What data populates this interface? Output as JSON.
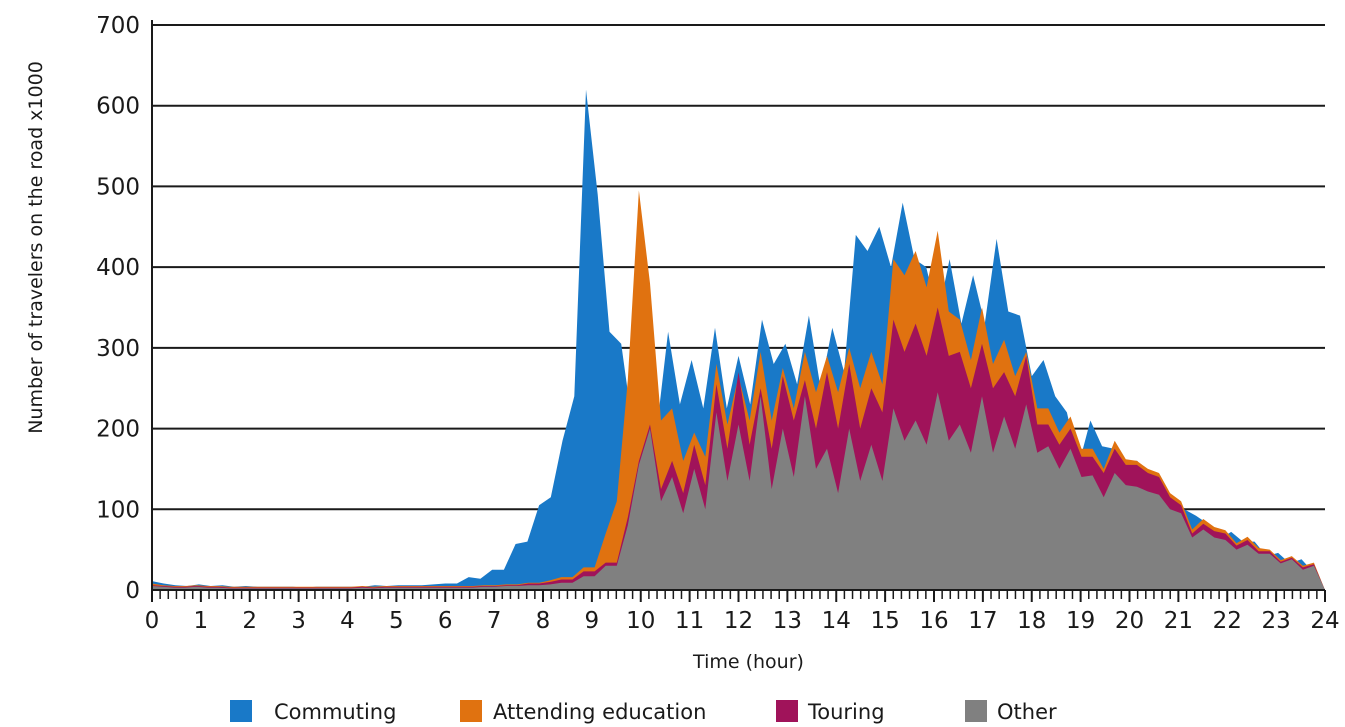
{
  "chart_data": {
    "type": "area",
    "stacked": true,
    "xlabel": "Time (hour)",
    "ylabel": "Number of travelers on the road x1000",
    "xlim": [
      0,
      24
    ],
    "ylim": [
      0,
      700
    ],
    "xticks": [
      0,
      1,
      2,
      3,
      4,
      5,
      6,
      7,
      8,
      9,
      10,
      11,
      12,
      13,
      14,
      15,
      16,
      17,
      18,
      19,
      20,
      21,
      22,
      23,
      24
    ],
    "yticks": [
      0,
      100,
      200,
      300,
      400,
      500,
      600,
      700
    ],
    "grid": "horizontal",
    "legend_position": "bottom",
    "x_step_hours": 0.1667,
    "series": [
      {
        "name": "Other",
        "color": "#808080",
        "totals": [
          5,
          4,
          3,
          3,
          4,
          3,
          3,
          2,
          2,
          2,
          2,
          2,
          2,
          2,
          2,
          2,
          2,
          2,
          2,
          3,
          2,
          3,
          3,
          3,
          3,
          3,
          3,
          3,
          3,
          3,
          4,
          4,
          5,
          5,
          6,
          6,
          7,
          9,
          9,
          17,
          17,
          30,
          30,
          80,
          155,
          200,
          110,
          140,
          95,
          150,
          100,
          220,
          135,
          205,
          135,
          240,
          125,
          200,
          140,
          240,
          150,
          175,
          120,
          200,
          135,
          180,
          135,
          225,
          185,
          210,
          180,
          245,
          185,
          205,
          170,
          240,
          170,
          215,
          175,
          230,
          170,
          178,
          150,
          175,
          140,
          142,
          115,
          145,
          130,
          128,
          122,
          118,
          100,
          95,
          65,
          75,
          65,
          62,
          50,
          56,
          45,
          45,
          33,
          38,
          25,
          30,
          0
        ]
      },
      {
        "name": "Touring",
        "color": "#a0135a",
        "totals": [
          6,
          5,
          4,
          4,
          5,
          4,
          4,
          3,
          3,
          3,
          3,
          3,
          3,
          3,
          3,
          3,
          3,
          3,
          3,
          4,
          3,
          4,
          4,
          4,
          4,
          4,
          4,
          4,
          4,
          4,
          5,
          5,
          6,
          6,
          8,
          8,
          10,
          13,
          13,
          23,
          23,
          34,
          34,
          90,
          160,
          205,
          125,
          160,
          120,
          180,
          130,
          255,
          175,
          270,
          180,
          250,
          175,
          265,
          210,
          260,
          200,
          270,
          200,
          280,
          200,
          250,
          220,
          335,
          295,
          330,
          290,
          350,
          290,
          295,
          250,
          305,
          250,
          270,
          240,
          290,
          205,
          205,
          180,
          200,
          165,
          165,
          145,
          175,
          155,
          155,
          145,
          140,
          115,
          105,
          70,
          82,
          73,
          70,
          55,
          62,
          48,
          48,
          35,
          40,
          28,
          32,
          0
        ]
      },
      {
        "name": "Attending education",
        "color": "#e07210",
        "totals": [
          8,
          6,
          5,
          5,
          6,
          5,
          5,
          4,
          4,
          4,
          4,
          4,
          4,
          4,
          4,
          4,
          4,
          4,
          4,
          5,
          4,
          5,
          5,
          5,
          5,
          5,
          5,
          5,
          5,
          5,
          6,
          6,
          7,
          7,
          9,
          9,
          12,
          16,
          16,
          28,
          28,
          70,
          110,
          260,
          495,
          380,
          210,
          225,
          160,
          195,
          165,
          280,
          205,
          265,
          210,
          295,
          210,
          275,
          225,
          295,
          245,
          290,
          245,
          300,
          250,
          295,
          255,
          410,
          390,
          420,
          375,
          445,
          345,
          335,
          285,
          350,
          280,
          310,
          265,
          295,
          225,
          225,
          195,
          215,
          175,
          175,
          150,
          185,
          162,
          160,
          150,
          145,
          120,
          110,
          75,
          88,
          78,
          74,
          58,
          66,
          52,
          50,
          37,
          42,
          30,
          34,
          0
        ]
      },
      {
        "name": "Commuting",
        "color": "#1979c8",
        "totals": [
          11,
          8,
          6,
          5,
          7,
          5,
          6,
          4,
          5,
          4,
          4,
          4,
          4,
          3,
          4,
          4,
          4,
          4,
          4,
          6,
          5,
          6,
          6,
          6,
          7,
          8,
          8,
          16,
          14,
          25,
          25,
          57,
          60,
          105,
          115,
          185,
          240,
          620,
          490,
          320,
          305,
          200,
          245,
          195,
          320,
          230,
          285,
          225,
          325,
          225,
          290,
          230,
          335,
          280,
          305,
          255,
          340,
          250,
          325,
          270,
          440,
          420,
          450,
          400,
          480,
          410,
          400,
          340,
          410,
          330,
          390,
          330,
          435,
          345,
          340,
          265,
          285,
          240,
          220,
          155,
          210,
          178,
          175,
          160,
          160,
          140,
          125,
          80,
          100,
          92,
          82,
          63,
          72,
          60,
          60,
          42,
          46,
          33,
          38,
          22,
          0
        ]
      }
    ]
  },
  "legend": {
    "items": [
      {
        "label": "Commuting",
        "color": "#1979c8"
      },
      {
        "label": "Attending education",
        "color": "#e07210"
      },
      {
        "label": "Touring",
        "color": "#a0135a"
      },
      {
        "label": "Other",
        "color": "#808080"
      }
    ]
  }
}
